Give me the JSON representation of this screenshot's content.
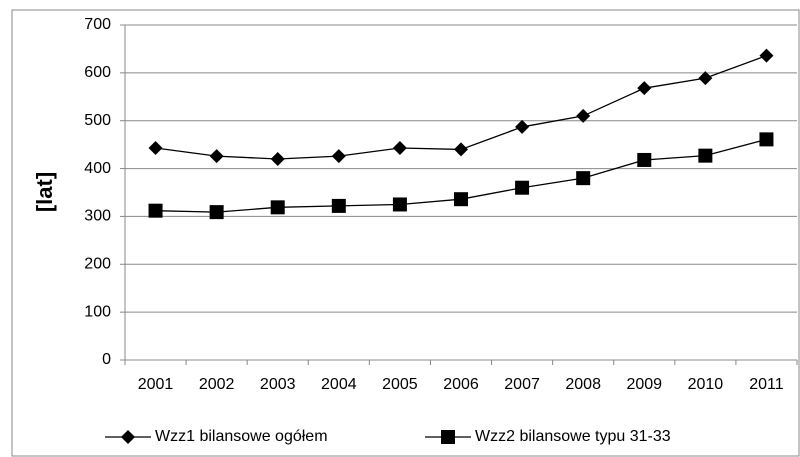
{
  "chart_data": {
    "type": "line",
    "y_label": "[lat]",
    "categories": [
      "2001",
      "2002",
      "2003",
      "2004",
      "2005",
      "2006",
      "2007",
      "2008",
      "2009",
      "2010",
      "2011"
    ],
    "series": [
      {
        "name": "Wzz1 bilansowe ogółem",
        "color": "#000000",
        "marker": "diamond",
        "values": [
          443,
          426,
          420,
          426,
          443,
          440,
          487,
          510,
          568,
          589,
          636
        ]
      },
      {
        "name": "Wzz2 bilansowe typu 31-33",
        "color": "#000000",
        "marker": "square",
        "values": [
          312,
          309,
          319,
          322,
          325,
          336,
          360,
          380,
          418,
          427,
          461
        ]
      }
    ],
    "ylim": [
      0,
      700
    ],
    "yticks": [
      0,
      100,
      200,
      300,
      400,
      500,
      600,
      700
    ],
    "grid": true,
    "legend": "bottom"
  }
}
